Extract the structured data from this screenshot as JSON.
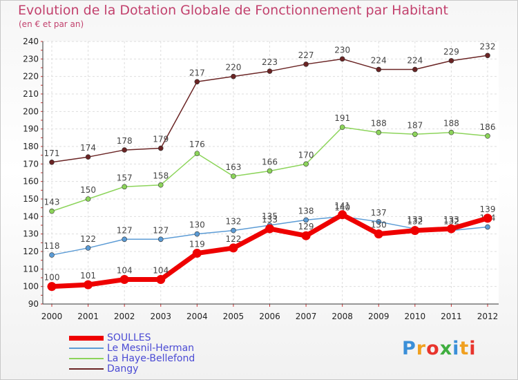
{
  "title": "Evolution de la Dotation Globale de Fonctionnement par Habitant",
  "subtitle": "(en € et par an)",
  "logo": {
    "letters": [
      "P",
      "r",
      "o",
      "x",
      "i",
      "t",
      "i"
    ],
    "colors": [
      "#3a8fd8",
      "#f0a020",
      "#e8342c",
      "#3fae3f",
      "#3a8fd8",
      "#f0a020",
      "#e8342c"
    ]
  },
  "chart_data": {
    "type": "line",
    "title": "Evolution de la Dotation Globale de Fonctionnement par Habitant",
    "subtitle": "(en € et par an)",
    "xlabel": "",
    "ylabel": "",
    "x": [
      "2000",
      "2001",
      "2002",
      "2003",
      "2004",
      "2005",
      "2006",
      "2007",
      "2008",
      "2009",
      "2010",
      "2011",
      "2012"
    ],
    "ylim": [
      90,
      240
    ],
    "yticks": [
      90,
      100,
      110,
      120,
      130,
      140,
      150,
      160,
      170,
      180,
      190,
      200,
      210,
      220,
      230,
      240
    ],
    "series": [
      {
        "name": "SOULLES",
        "color": "#ee0000",
        "values": [
          100,
          101,
          104,
          104,
          119,
          122,
          133,
          129,
          141,
          130,
          132,
          133,
          139
        ]
      },
      {
        "name": "Le Mesnil-Herman",
        "color": "#5b9bd5",
        "values": [
          118,
          122,
          127,
          127,
          130,
          132,
          135,
          138,
          140,
          137,
          133,
          132,
          134
        ]
      },
      {
        "name": "La Haye-Bellefond",
        "color": "#8cd45a",
        "values": [
          143,
          150,
          157,
          158,
          176,
          163,
          166,
          170,
          191,
          188,
          187,
          188,
          186
        ]
      },
      {
        "name": "Dangy",
        "color": "#6a2424",
        "values": [
          171,
          174,
          178,
          179,
          217,
          220,
          223,
          227,
          230,
          224,
          224,
          229,
          232
        ]
      }
    ],
    "legend": [
      "SOULLES",
      "Le Mesnil-Herman",
      "La Haye-Bellefond",
      "Dangy"
    ]
  }
}
